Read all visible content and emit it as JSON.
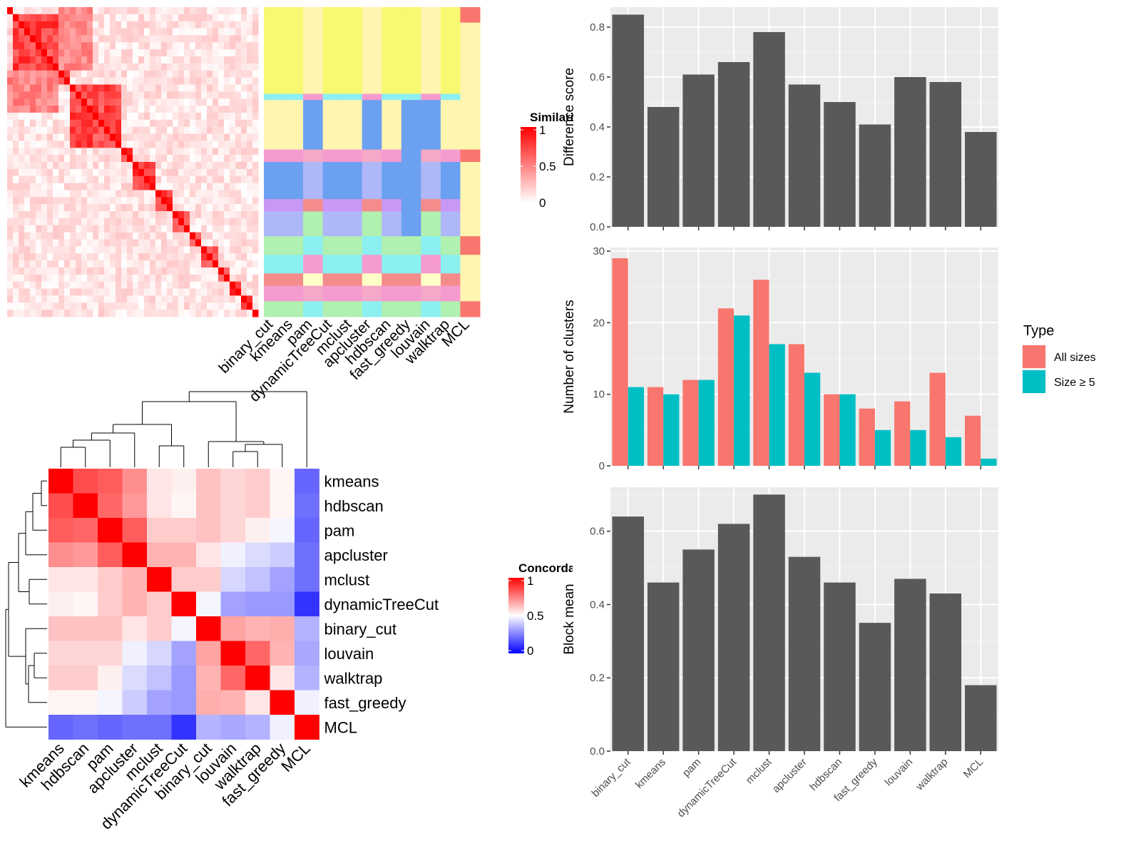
{
  "methods": [
    "binary_cut",
    "kmeans",
    "pam",
    "dynamicTreeCut",
    "mclust",
    "apcluster",
    "hdbscan",
    "fast_greedy",
    "louvain",
    "walktrap",
    "MCL"
  ],
  "similarity_legend": {
    "title": "Similarity",
    "ticks": [
      "1",
      "0.5",
      "0"
    ],
    "colors": [
      "#FFFFFF",
      "#FF0000"
    ]
  },
  "concordance_legend": {
    "title": "Concordance",
    "ticks": [
      "1",
      "0.5",
      "0"
    ],
    "colors": [
      "#0000FF",
      "#FFFFFF",
      "#FF0000"
    ]
  },
  "concordance_order": [
    "kmeans",
    "hdbscan",
    "pam",
    "apcluster",
    "mclust",
    "dynamicTreeCut",
    "binary_cut",
    "louvain",
    "walktrap",
    "fast_greedy",
    "MCL"
  ],
  "chart_data": [
    {
      "type": "bar",
      "name": "difference",
      "categories": [
        "binary_cut",
        "kmeans",
        "pam",
        "dynamicTreeCut",
        "mclust",
        "apcluster",
        "hdbscan",
        "fast_greedy",
        "louvain",
        "walktrap",
        "MCL"
      ],
      "values": [
        0.85,
        0.48,
        0.61,
        0.66,
        0.78,
        0.57,
        0.5,
        0.41,
        0.6,
        0.58,
        0.38
      ],
      "ylabel": "Difference score",
      "ylim": [
        0,
        0.88
      ],
      "yticks": [
        "0.0",
        "0.2",
        "0.4",
        "0.6",
        "0.8"
      ],
      "bar_color": "#595959"
    },
    {
      "type": "bar",
      "name": "clusters",
      "categories": [
        "binary_cut",
        "kmeans",
        "pam",
        "dynamicTreeCut",
        "mclust",
        "apcluster",
        "hdbscan",
        "fast_greedy",
        "louvain",
        "walktrap",
        "MCL"
      ],
      "series": [
        {
          "name": "All sizes",
          "values": [
            29,
            11,
            12,
            22,
            26,
            17,
            10,
            8,
            9,
            13,
            7
          ],
          "color": "#F8766D"
        },
        {
          "name": "Size ≥ 5",
          "values": [
            11,
            10,
            12,
            21,
            17,
            13,
            10,
            5,
            5,
            4,
            1
          ],
          "color": "#00BFC4"
        }
      ],
      "ylabel": "Number of clusters",
      "ylim": [
        0,
        30.5
      ],
      "yticks": [
        "0",
        "10",
        "20",
        "30"
      ],
      "legend": {
        "title": "Type",
        "position": "right"
      }
    },
    {
      "type": "bar",
      "name": "blockmean",
      "categories": [
        "binary_cut",
        "kmeans",
        "pam",
        "dynamicTreeCut",
        "mclust",
        "apcluster",
        "hdbscan",
        "fast_greedy",
        "louvain",
        "walktrap",
        "MCL"
      ],
      "values": [
        0.64,
        0.46,
        0.55,
        0.62,
        0.7,
        0.53,
        0.46,
        0.35,
        0.47,
        0.43,
        0.18
      ],
      "ylabel": "Block mean",
      "ylim": [
        0,
        0.72
      ],
      "yticks": [
        "0.0",
        "0.2",
        "0.4",
        "0.6"
      ],
      "bar_color": "#595959"
    },
    {
      "type": "heatmap",
      "name": "concordance",
      "rows": [
        "kmeans",
        "hdbscan",
        "pam",
        "apcluster",
        "mclust",
        "dynamicTreeCut",
        "binary_cut",
        "louvain",
        "walktrap",
        "fast_greedy",
        "MCL"
      ],
      "columns": [
        "kmeans",
        "hdbscan",
        "pam",
        "apcluster",
        "mclust",
        "dynamicTreeCut",
        "binary_cut",
        "louvain",
        "walktrap",
        "fast_greedy",
        "MCL"
      ],
      "values": [
        [
          1.0,
          0.85,
          0.82,
          0.72,
          0.55,
          0.53,
          0.62,
          0.58,
          0.6,
          0.52,
          0.2
        ],
        [
          0.85,
          1.0,
          0.8,
          0.7,
          0.55,
          0.52,
          0.62,
          0.58,
          0.6,
          0.52,
          0.22
        ],
        [
          0.82,
          0.8,
          1.0,
          0.82,
          0.6,
          0.6,
          0.62,
          0.58,
          0.53,
          0.48,
          0.2
        ],
        [
          0.72,
          0.7,
          0.82,
          1.0,
          0.65,
          0.65,
          0.55,
          0.47,
          0.43,
          0.4,
          0.22
        ],
        [
          0.55,
          0.55,
          0.6,
          0.65,
          1.0,
          0.6,
          0.6,
          0.42,
          0.38,
          0.32,
          0.22
        ],
        [
          0.53,
          0.52,
          0.6,
          0.65,
          0.6,
          1.0,
          0.48,
          0.32,
          0.3,
          0.3,
          0.1
        ],
        [
          0.62,
          0.62,
          0.62,
          0.55,
          0.6,
          0.48,
          1.0,
          0.68,
          0.65,
          0.66,
          0.35
        ],
        [
          0.58,
          0.58,
          0.58,
          0.47,
          0.42,
          0.32,
          0.68,
          1.0,
          0.8,
          0.65,
          0.33
        ],
        [
          0.6,
          0.6,
          0.53,
          0.43,
          0.38,
          0.3,
          0.65,
          0.8,
          1.0,
          0.55,
          0.35
        ],
        [
          0.52,
          0.52,
          0.48,
          0.4,
          0.32,
          0.3,
          0.66,
          0.65,
          0.55,
          1.0,
          0.47
        ],
        [
          0.2,
          0.22,
          0.2,
          0.22,
          0.22,
          0.1,
          0.35,
          0.33,
          0.35,
          0.47,
          1.0
        ]
      ],
      "legend": {
        "title": "Concordance"
      }
    }
  ]
}
